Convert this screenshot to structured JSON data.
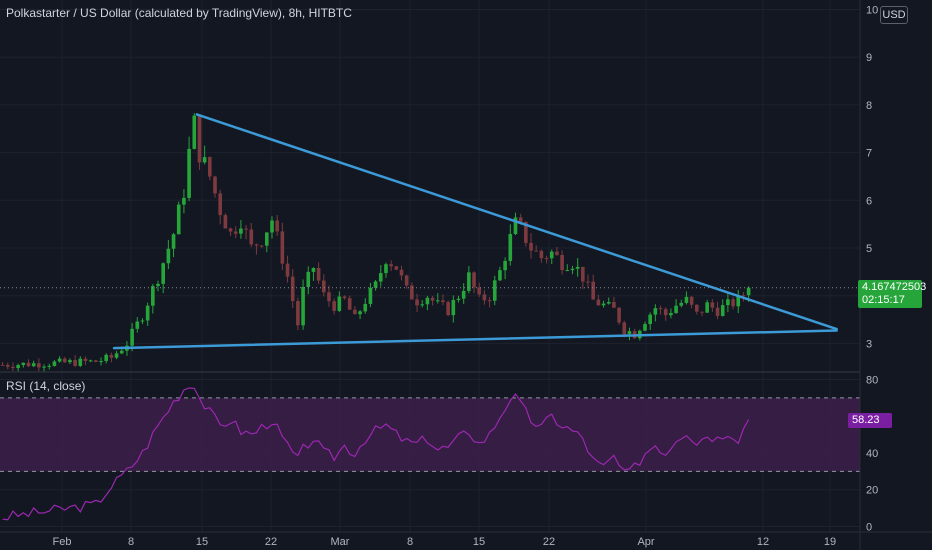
{
  "header": {
    "title": "Polkastarter / US Dollar (calculated by TradingView), 8h, HITBTC",
    "currency": "USD"
  },
  "rsi_panel": {
    "title": "RSI (14, close)",
    "value_label": "58.23"
  },
  "price_badge": {
    "price": "4.167472503",
    "countdown": "02:15:17"
  },
  "colors": {
    "background": "#131722",
    "up": "#26a63a",
    "down": "#7d3a3f",
    "trendline": "#3c9ad6",
    "rsi_line": "#9c27b0",
    "rsi_band": "#3a1e48",
    "badge": "#26a63a",
    "rsi_badge": "#7b1fa2"
  },
  "chart_data": [
    {
      "type": "candlestick",
      "y_ticks": [
        3,
        4,
        5,
        6,
        7,
        8,
        9,
        10
      ],
      "x_ticks": [
        "Feb",
        "8",
        "15",
        "22",
        "Mar",
        "8",
        "15",
        "22",
        "Apr",
        "12",
        "19"
      ],
      "ylim": [
        2.4,
        10.2
      ],
      "last_price": 4.167472503,
      "close_path": [
        [
          0,
          2.55
        ],
        [
          18,
          2.62
        ],
        [
          21,
          2.7
        ],
        [
          24,
          3.0
        ],
        [
          27,
          3.6
        ],
        [
          30,
          4.4
        ],
        [
          33,
          5.3
        ],
        [
          35,
          6.2
        ],
        [
          36,
          7.0
        ],
        [
          37,
          7.6
        ],
        [
          38,
          7.0
        ],
        [
          40,
          6.5
        ],
        [
          42,
          5.8
        ],
        [
          44,
          5.3
        ],
        [
          46,
          5.6
        ],
        [
          48,
          5.0
        ],
        [
          50,
          5.2
        ],
        [
          52,
          5.6
        ],
        [
          54,
          4.8
        ],
        [
          55,
          4.4
        ],
        [
          56,
          3.9
        ],
        [
          57,
          3.4
        ],
        [
          58,
          4.1
        ],
        [
          60,
          4.6
        ],
        [
          62,
          4.0
        ],
        [
          64,
          3.8
        ],
        [
          66,
          3.9
        ],
        [
          68,
          3.5
        ],
        [
          70,
          3.9
        ],
        [
          72,
          4.2
        ],
        [
          74,
          4.8
        ],
        [
          76,
          4.6
        ],
        [
          78,
          4.1
        ],
        [
          80,
          3.9
        ],
        [
          82,
          4.0
        ],
        [
          84,
          3.8
        ],
        [
          86,
          3.7
        ],
        [
          88,
          4.0
        ],
        [
          90,
          4.4
        ],
        [
          92,
          3.9
        ],
        [
          94,
          4.0
        ],
        [
          96,
          4.5
        ],
        [
          98,
          5.2
        ],
        [
          99,
          5.5
        ],
        [
          100,
          5.4
        ],
        [
          102,
          5.0
        ],
        [
          104,
          4.8
        ],
        [
          106,
          4.9
        ],
        [
          108,
          4.7
        ],
        [
          110,
          4.7
        ],
        [
          112,
          4.4
        ],
        [
          114,
          3.9
        ],
        [
          116,
          3.8
        ],
        [
          118,
          3.7
        ],
        [
          120,
          3.3
        ],
        [
          122,
          3.2
        ],
        [
          124,
          3.5
        ],
        [
          126,
          3.75
        ],
        [
          128,
          3.6
        ],
        [
          130,
          3.8
        ],
        [
          132,
          3.9
        ],
        [
          134,
          3.6
        ],
        [
          136,
          3.8
        ],
        [
          138,
          3.7
        ],
        [
          140,
          3.8
        ],
        [
          142,
          3.9
        ],
        [
          144,
          4.17
        ]
      ],
      "trendlines": [
        {
          "from": [
            37.5,
            7.8
          ],
          "to": [
            161,
            3.3
          ]
        },
        {
          "from": [
            21.5,
            2.9
          ],
          "to": [
            161,
            3.27
          ]
        }
      ],
      "grid": true
    },
    {
      "type": "line",
      "name": "RSI (14, close)",
      "y_ticks": [
        0,
        20,
        40,
        60,
        80
      ],
      "ylim": [
        -3,
        83
      ],
      "bands": [
        30,
        70
      ],
      "last_value": 58.23,
      "path": [
        [
          0,
          5
        ],
        [
          18,
          12
        ],
        [
          21,
          22
        ],
        [
          24,
          30
        ],
        [
          27,
          40
        ],
        [
          30,
          55
        ],
        [
          33,
          68
        ],
        [
          35,
          75
        ],
        [
          37,
          78
        ],
        [
          38,
          70
        ],
        [
          40,
          62
        ],
        [
          42,
          55
        ],
        [
          44,
          58
        ],
        [
          46,
          52
        ],
        [
          48,
          50
        ],
        [
          50,
          54
        ],
        [
          52,
          58
        ],
        [
          54,
          48
        ],
        [
          56,
          40
        ],
        [
          57,
          36
        ],
        [
          58,
          42
        ],
        [
          60,
          48
        ],
        [
          62,
          40
        ],
        [
          64,
          38
        ],
        [
          66,
          44
        ],
        [
          68,
          40
        ],
        [
          70,
          48
        ],
        [
          72,
          52
        ],
        [
          74,
          55
        ],
        [
          76,
          50
        ],
        [
          78,
          46
        ],
        [
          80,
          45
        ],
        [
          82,
          48
        ],
        [
          84,
          42
        ],
        [
          86,
          43
        ],
        [
          88,
          48
        ],
        [
          90,
          52
        ],
        [
          92,
          45
        ],
        [
          94,
          50
        ],
        [
          96,
          60
        ],
        [
          98,
          70
        ],
        [
          99,
          70
        ],
        [
          100,
          66
        ],
        [
          102,
          58
        ],
        [
          104,
          54
        ],
        [
          106,
          60
        ],
        [
          108,
          55
        ],
        [
          110,
          52
        ],
        [
          112,
          48
        ],
        [
          114,
          36
        ],
        [
          116,
          32
        ],
        [
          118,
          38
        ],
        [
          120,
          28
        ],
        [
          122,
          32
        ],
        [
          124,
          40
        ],
        [
          126,
          45
        ],
        [
          128,
          40
        ],
        [
          130,
          48
        ],
        [
          132,
          52
        ],
        [
          134,
          46
        ],
        [
          136,
          50
        ],
        [
          138,
          48
        ],
        [
          140,
          52
        ],
        [
          142,
          48
        ],
        [
          144,
          58
        ]
      ],
      "grid": true
    }
  ]
}
